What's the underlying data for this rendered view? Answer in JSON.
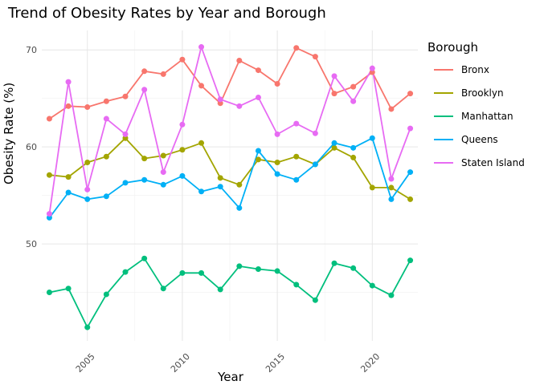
{
  "chart_data": {
    "type": "line",
    "title": "Trend of Obesity Rates by Year and Borough",
    "xlabel": "Year",
    "ylabel": "Obesity Rate (%)",
    "x": [
      2003,
      2004,
      2005,
      2006,
      2007,
      2008,
      2009,
      2010,
      2011,
      2012,
      2013,
      2014,
      2015,
      2016,
      2017,
      2018,
      2019,
      2020,
      2021,
      2022
    ],
    "xlim": [
      2002.6,
      2022.4
    ],
    "ylim": [
      40,
      72
    ],
    "x_ticks": [
      2005,
      2010,
      2015,
      2020
    ],
    "y_ticks": [
      50,
      60,
      70
    ],
    "grid": true,
    "legend_title": "Borough",
    "legend_position": "right",
    "series": [
      {
        "name": "Bronx",
        "color": "#F8766D",
        "values": [
          62.9,
          64.2,
          64.1,
          64.7,
          65.2,
          67.8,
          67.5,
          69.0,
          66.3,
          64.5,
          68.9,
          67.9,
          66.5,
          70.2,
          69.3,
          65.5,
          66.2,
          67.7,
          63.9,
          65.5
        ]
      },
      {
        "name": "Brooklyn",
        "color": "#A3A500",
        "values": [
          57.1,
          56.9,
          58.4,
          59.0,
          60.9,
          58.8,
          59.1,
          59.7,
          60.4,
          56.8,
          56.1,
          58.7,
          58.4,
          59.0,
          58.2,
          59.9,
          58.9,
          55.8,
          55.8,
          54.6
        ]
      },
      {
        "name": "Manhattan",
        "color": "#00BF7D",
        "values": [
          45.0,
          45.4,
          41.4,
          44.8,
          47.1,
          48.5,
          45.4,
          47.0,
          47.0,
          45.3,
          47.7,
          47.4,
          47.2,
          45.8,
          44.2,
          48.0,
          47.5,
          45.7,
          44.7,
          48.3
        ]
      },
      {
        "name": "Queens",
        "color": "#00B0F6",
        "values": [
          52.7,
          55.3,
          54.6,
          54.9,
          56.3,
          56.6,
          56.1,
          57.0,
          55.4,
          55.9,
          53.7,
          59.6,
          57.2,
          56.6,
          58.2,
          60.4,
          59.9,
          60.9,
          54.6,
          57.4
        ]
      },
      {
        "name": "Staten Island",
        "color": "#E76BF3",
        "values": [
          53.1,
          66.7,
          55.6,
          62.9,
          61.3,
          65.9,
          57.4,
          62.3,
          70.3,
          64.9,
          64.2,
          65.1,
          61.3,
          62.4,
          61.4,
          67.3,
          64.7,
          68.1,
          56.7,
          61.9
        ]
      }
    ]
  }
}
